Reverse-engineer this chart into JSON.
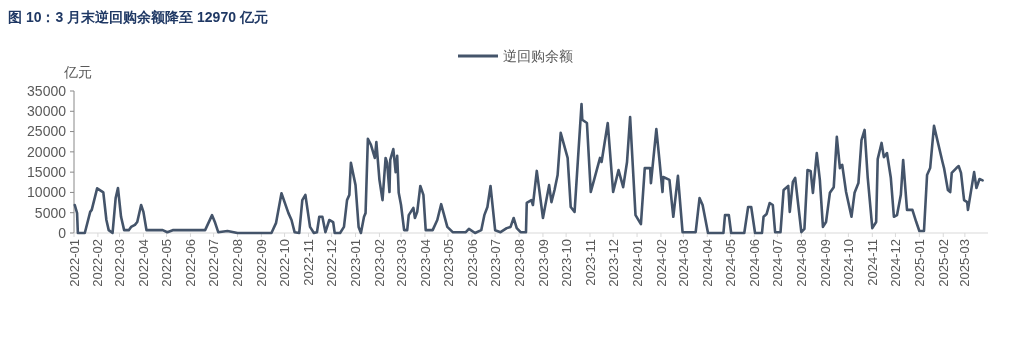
{
  "chart_data": {
    "type": "line",
    "title": "图 10：3 月末逆回购余额降至 12970 亿元",
    "ylabel": "亿元",
    "legend": "top",
    "grid": false,
    "line_style": "solid",
    "xlim": [
      "2022-01-01",
      "2025-03-31"
    ],
    "ylim": [
      0,
      35000
    ],
    "yticks": [
      0,
      5000,
      10000,
      15000,
      20000,
      25000,
      30000,
      35000
    ],
    "xticks": [
      "2022-01",
      "2022-02",
      "2022-03",
      "2022-04",
      "2022-05",
      "2022-06",
      "2022-07",
      "2022-08",
      "2022-09",
      "2022-10",
      "2022-11",
      "2022-12",
      "2023-01",
      "2023-02",
      "2023-03",
      "2023-04",
      "2023-05",
      "2023-06",
      "2023-07",
      "2023-08",
      "2023-09",
      "2023-10",
      "2023-11",
      "2023-12",
      "2024-01",
      "2024-02",
      "2024-03",
      "2024-04",
      "2024-05",
      "2024-06",
      "2024-07",
      "2024-08",
      "2024-09",
      "2024-10",
      "2024-11",
      "2024-12",
      "2025-01",
      "2025-02",
      "2025-03"
    ],
    "x": [
      "2022-01-02",
      "2022-01-05",
      "2022-01-06",
      "2022-01-15",
      "2022-01-22",
      "2022-01-24",
      "2022-01-31",
      "2022-02-08",
      "2022-02-12",
      "2022-02-15",
      "2022-02-20",
      "2022-02-24",
      "2022-02-27",
      "2022-03-03",
      "2022-03-07",
      "2022-03-13",
      "2022-03-16",
      "2022-03-21",
      "2022-03-24",
      "2022-03-29",
      "2022-04-01",
      "2022-04-05",
      "2022-04-13",
      "2022-04-26",
      "2022-05-02",
      "2022-05-09",
      "2022-06-20",
      "2022-06-29",
      "2022-07-03",
      "2022-07-07",
      "2022-07-19",
      "2022-08-01",
      "2022-09-14",
      "2022-09-20",
      "2022-09-27",
      "2022-10-06",
      "2022-10-10",
      "2022-10-14",
      "2022-10-20",
      "2022-10-24",
      "2022-10-28",
      "2022-11-03",
      "2022-11-08",
      "2022-11-12",
      "2022-11-15",
      "2022-11-19",
      "2022-11-23",
      "2022-11-28",
      "2022-12-03",
      "2022-12-05",
      "2022-12-12",
      "2022-12-17",
      "2022-12-21",
      "2022-12-24",
      "2022-12-26",
      "2023-01-01",
      "2023-01-05",
      "2023-01-08",
      "2023-01-12",
      "2023-01-14",
      "2023-01-17",
      "2023-01-21",
      "2023-01-26",
      "2023-01-28",
      "2023-02-01",
      "2023-02-05",
      "2023-02-09",
      "2023-02-11",
      "2023-02-14",
      "2023-02-15",
      "2023-02-19",
      "2023-02-22",
      "2023-02-24",
      "2023-02-26",
      "2023-03-01",
      "2023-03-05",
      "2023-03-09",
      "2023-03-11",
      "2023-03-17",
      "2023-03-19",
      "2023-03-22",
      "2023-03-26",
      "2023-03-30",
      "2023-04-02",
      "2023-04-11",
      "2023-04-17",
      "2023-04-22",
      "2023-04-30",
      "2023-05-07",
      "2023-05-24",
      "2023-05-28",
      "2023-06-05",
      "2023-06-13",
      "2023-06-17",
      "2023-06-21",
      "2023-06-25",
      "2023-07-01",
      "2023-07-08",
      "2023-07-16",
      "2023-07-21",
      "2023-07-25",
      "2023-07-29",
      "2023-08-03",
      "2023-08-10",
      "2023-08-11",
      "2023-08-17",
      "2023-08-19",
      "2023-08-24",
      "2023-09-01",
      "2023-09-09",
      "2023-09-12",
      "2023-09-16",
      "2023-09-20",
      "2023-09-24",
      "2023-10-03",
      "2023-10-07",
      "2023-10-12",
      "2023-10-21",
      "2023-10-22",
      "2023-10-28",
      "2023-11-02",
      "2023-11-07",
      "2023-11-14",
      "2023-11-16",
      "2023-11-24",
      "2023-12-01",
      "2023-12-08",
      "2023-12-14",
      "2023-12-19",
      "2023-12-23",
      "2023-12-30",
      "2024-01-06",
      "2024-01-11",
      "2024-01-18",
      "2024-01-19",
      "2024-01-26",
      "2024-01-30",
      "2024-02-03",
      "2024-02-04",
      "2024-02-12",
      "2024-02-17",
      "2024-02-23",
      "2024-02-29",
      "2024-03-17",
      "2024-03-22",
      "2024-03-26",
      "2024-04-02",
      "2024-04-22",
      "2024-04-24",
      "2024-04-29",
      "2024-05-02",
      "2024-05-19",
      "2024-05-24",
      "2024-05-28",
      "2024-06-02",
      "2024-06-11",
      "2024-06-13",
      "2024-06-17",
      "2024-06-21",
      "2024-06-25",
      "2024-06-28",
      "2024-07-05",
      "2024-07-09",
      "2024-07-15",
      "2024-07-17",
      "2024-07-21",
      "2024-07-24",
      "2024-07-28",
      "2024-08-01",
      "2024-08-05",
      "2024-08-09",
      "2024-08-13",
      "2024-08-16",
      "2024-08-21",
      "2024-08-25",
      "2024-08-29",
      "2024-09-02",
      "2024-09-07",
      "2024-09-12",
      "2024-09-16",
      "2024-09-20",
      "2024-09-23",
      "2024-09-28",
      "2024-10-05",
      "2024-10-09",
      "2024-10-14",
      "2024-10-18",
      "2024-10-22",
      "2024-10-26",
      "2024-11-01",
      "2024-11-06",
      "2024-11-08",
      "2024-11-13",
      "2024-11-16",
      "2024-11-20",
      "2024-11-25",
      "2024-11-29",
      "2024-12-03",
      "2024-12-08",
      "2024-12-11",
      "2024-12-16",
      "2024-12-23",
      "2024-12-28",
      "2025-01-01",
      "2025-01-07",
      "2025-01-11",
      "2025-01-15",
      "2025-01-20",
      "2025-01-31",
      "2025-02-02",
      "2025-02-07",
      "2025-02-10",
      "2025-02-12",
      "2025-02-18",
      "2025-02-21",
      "2025-02-24",
      "2025-02-28",
      "2025-03-04",
      "2025-03-05",
      "2025-03-13",
      "2025-03-16",
      "2025-03-20",
      "2025-03-24"
    ],
    "series": [
      {
        "name": "逆回购余额",
        "color": "#44546a",
        "values": [
          6900,
          4900,
          0,
          0,
          5200,
          5700,
          11000,
          10000,
          3200,
          700,
          0,
          8600,
          11100,
          4000,
          700,
          700,
          1500,
          2000,
          2700,
          6900,
          5200,
          700,
          700,
          700,
          200,
          700,
          700,
          4400,
          2500,
          200,
          500,
          0,
          0,
          2500,
          9800,
          4900,
          3200,
          200,
          0,
          8100,
          9400,
          1500,
          0,
          200,
          4000,
          4000,
          200,
          3200,
          2700,
          0,
          0,
          1500,
          8100,
          9400,
          17300,
          11800,
          1500,
          0,
          4000,
          4900,
          23200,
          21700,
          18500,
          22400,
          13100,
          8100,
          18500,
          17300,
          10100,
          18000,
          20700,
          15000,
          19000,
          9900,
          6900,
          700,
          700,
          4400,
          6200,
          3700,
          5200,
          11600,
          9400,
          700,
          700,
          3200,
          7100,
          1500,
          200,
          200,
          1000,
          0,
          700,
          4400,
          6400,
          11600,
          700,
          200,
          1200,
          1500,
          3700,
          1200,
          200,
          200,
          7400,
          8100,
          6900,
          15300,
          3700,
          11800,
          7600,
          10600,
          14300,
          24700,
          18500,
          6400,
          5200,
          31800,
          27900,
          27100,
          10100,
          13600,
          18500,
          17500,
          27100,
          10100,
          15500,
          11300,
          17500,
          28600,
          4400,
          2200,
          16000,
          16000,
          12300,
          25600,
          18000,
          10100,
          13800,
          13100,
          4000,
          14100,
          200,
          200,
          8600,
          6900,
          0,
          0,
          4400,
          4400,
          0,
          0,
          6400,
          6400,
          0,
          0,
          4000,
          4700,
          7400,
          6900,
          200,
          200,
          10600,
          11600,
          5200,
          12600,
          13600,
          6900,
          200,
          1000,
          15500,
          15300,
          9900,
          19700,
          13100,
          1500,
          2700,
          9900,
          11300,
          23700,
          16000,
          16800,
          10100,
          4000,
          9900,
          12300,
          22900,
          25400,
          13800,
          1200,
          2700,
          18200,
          22200,
          18700,
          19700,
          13600,
          4000,
          4400,
          9400,
          18000,
          5700,
          5700,
          2700,
          500,
          500,
          14300,
          16000,
          26400,
          17500,
          16000,
          10600,
          10100,
          14800,
          16000,
          16500,
          14800,
          8100,
          7600,
          5700,
          15000,
          11100,
          13300,
          12970
        ]
      }
    ]
  }
}
